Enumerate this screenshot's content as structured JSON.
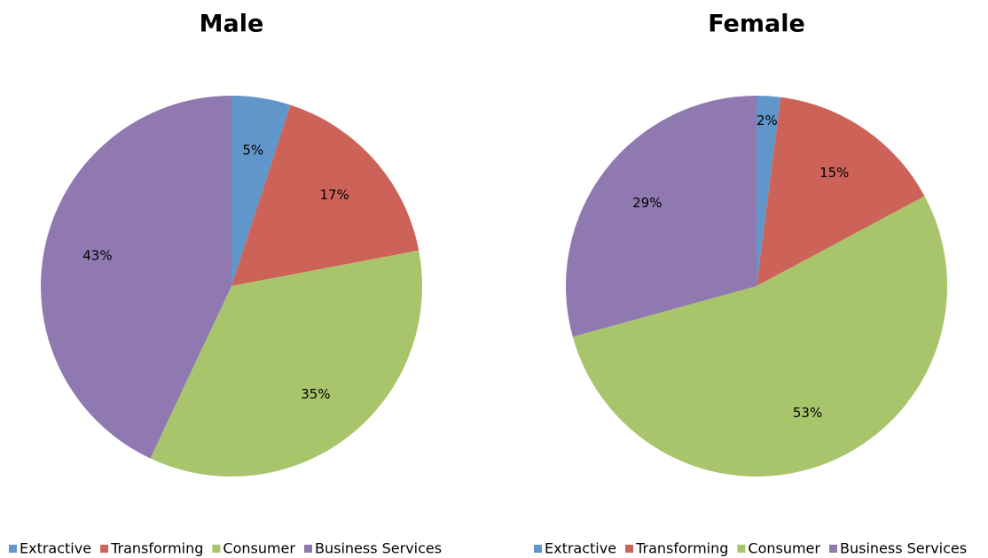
{
  "chart_data": [
    {
      "type": "pie",
      "title": "Male",
      "categories": [
        "Extractive",
        "Transforming",
        "Consumer",
        "Business Services"
      ],
      "values": [
        5,
        17,
        35,
        43
      ],
      "value_labels": [
        "5%",
        "17%",
        "35%",
        "43%"
      ],
      "colors": [
        "#6096c9",
        "#cd6259",
        "#a9c56b",
        "#9079b0"
      ],
      "legend": "bottom"
    },
    {
      "type": "pie",
      "title": "Female",
      "categories": [
        "Extractive",
        "Transforming",
        "Consumer",
        "Business Services"
      ],
      "values": [
        2,
        15,
        53,
        29
      ],
      "value_labels": [
        "2%",
        "15%",
        "53%",
        "29%"
      ],
      "colors": [
        "#6096c9",
        "#cd6259",
        "#a9c56b",
        "#9079b0"
      ],
      "legend": "bottom"
    }
  ]
}
